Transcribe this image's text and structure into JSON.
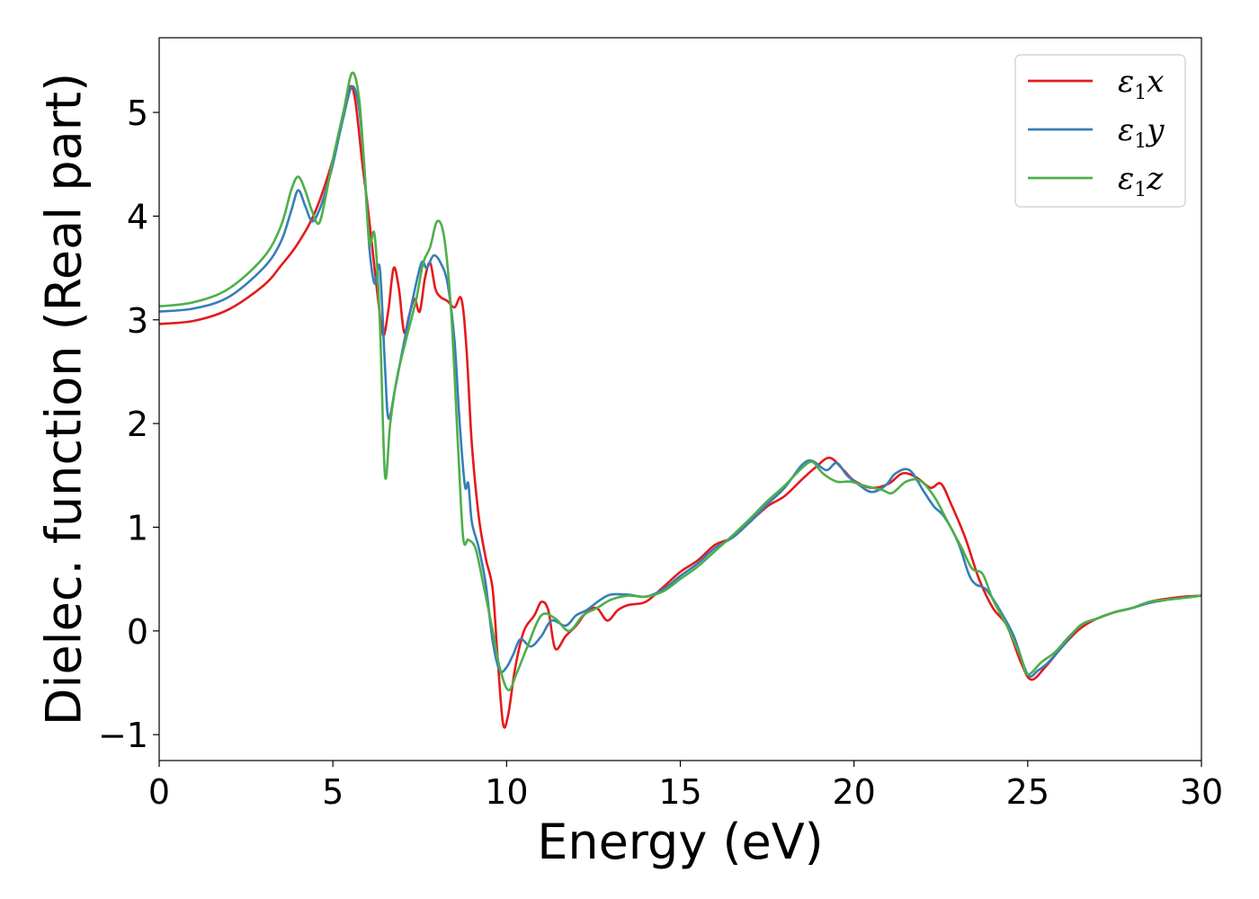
{
  "chart_data": {
    "type": "line",
    "title": "",
    "xlabel": "Energy (eV)",
    "ylabel": "Dielec. function (Real part)",
    "xlim": [
      0,
      30
    ],
    "ylim": [
      -1.25,
      5.72
    ],
    "xticks": [
      0,
      5,
      10,
      15,
      20,
      25,
      30
    ],
    "xtick_labels": [
      "0",
      "5",
      "10",
      "15",
      "20",
      "25",
      "30"
    ],
    "yticks": [
      -1,
      0,
      1,
      2,
      3,
      4,
      5
    ],
    "ytick_labels": [
      "−1",
      "0",
      "1",
      "2",
      "3",
      "4",
      "5"
    ],
    "grid": false,
    "legend_position": "top-right",
    "series": [
      {
        "name": "ε₁x",
        "legend_main": "ε",
        "legend_sub": "1",
        "legend_var": "x",
        "color": "#e41a1c",
        "points": [
          [
            0,
            2.96
          ],
          [
            1,
            2.99
          ],
          [
            2,
            3.1
          ],
          [
            3,
            3.33
          ],
          [
            3.5,
            3.52
          ],
          [
            4,
            3.74
          ],
          [
            4.5,
            4.05
          ],
          [
            5,
            4.55
          ],
          [
            5.3,
            5.0
          ],
          [
            5.5,
            5.25
          ],
          [
            5.65,
            5.1
          ],
          [
            5.85,
            4.5
          ],
          [
            6,
            4.1
          ],
          [
            6.15,
            3.65
          ],
          [
            6.3,
            3.2
          ],
          [
            6.45,
            2.85
          ],
          [
            6.6,
            3.1
          ],
          [
            6.75,
            3.5
          ],
          [
            6.9,
            3.3
          ],
          [
            7.05,
            2.88
          ],
          [
            7.2,
            3.05
          ],
          [
            7.35,
            3.2
          ],
          [
            7.5,
            3.08
          ],
          [
            7.65,
            3.4
          ],
          [
            7.8,
            3.55
          ],
          [
            7.95,
            3.3
          ],
          [
            8.1,
            3.22
          ],
          [
            8.3,
            3.18
          ],
          [
            8.5,
            3.12
          ],
          [
            8.7,
            3.2
          ],
          [
            8.85,
            2.7
          ],
          [
            9.0,
            1.8
          ],
          [
            9.2,
            1.1
          ],
          [
            9.4,
            0.7
          ],
          [
            9.6,
            0.4
          ],
          [
            9.75,
            -0.3
          ],
          [
            9.9,
            -0.9
          ],
          [
            10.05,
            -0.8
          ],
          [
            10.25,
            -0.35
          ],
          [
            10.5,
            0.0
          ],
          [
            10.8,
            0.15
          ],
          [
            11.0,
            0.28
          ],
          [
            11.2,
            0.2
          ],
          [
            11.4,
            -0.17
          ],
          [
            11.7,
            -0.05
          ],
          [
            12.0,
            0.05
          ],
          [
            12.3,
            0.18
          ],
          [
            12.6,
            0.22
          ],
          [
            12.9,
            0.1
          ],
          [
            13.2,
            0.2
          ],
          [
            13.5,
            0.25
          ],
          [
            14,
            0.28
          ],
          [
            14.5,
            0.42
          ],
          [
            15,
            0.57
          ],
          [
            15.5,
            0.68
          ],
          [
            16,
            0.83
          ],
          [
            16.5,
            0.9
          ],
          [
            17,
            1.05
          ],
          [
            17.5,
            1.2
          ],
          [
            18,
            1.3
          ],
          [
            18.5,
            1.46
          ],
          [
            18.9,
            1.58
          ],
          [
            19.3,
            1.67
          ],
          [
            19.7,
            1.55
          ],
          [
            20,
            1.45
          ],
          [
            20.5,
            1.38
          ],
          [
            21,
            1.42
          ],
          [
            21.4,
            1.52
          ],
          [
            21.8,
            1.48
          ],
          [
            22.2,
            1.38
          ],
          [
            22.5,
            1.42
          ],
          [
            22.8,
            1.22
          ],
          [
            23.2,
            0.9
          ],
          [
            23.6,
            0.5
          ],
          [
            24.0,
            0.22
          ],
          [
            24.4,
            0.05
          ],
          [
            24.8,
            -0.3
          ],
          [
            25.1,
            -0.47
          ],
          [
            25.5,
            -0.35
          ],
          [
            26,
            -0.15
          ],
          [
            26.5,
            0.02
          ],
          [
            27,
            0.12
          ],
          [
            27.5,
            0.18
          ],
          [
            28,
            0.22
          ],
          [
            28.5,
            0.28
          ],
          [
            29,
            0.31
          ],
          [
            29.5,
            0.33
          ],
          [
            30,
            0.34
          ]
        ]
      },
      {
        "name": "ε₁y",
        "legend_main": "ε",
        "legend_sub": "1",
        "legend_var": "y",
        "color": "#377eb8",
        "points": [
          [
            0,
            3.08
          ],
          [
            1,
            3.11
          ],
          [
            2,
            3.22
          ],
          [
            3,
            3.5
          ],
          [
            3.5,
            3.75
          ],
          [
            3.8,
            4.05
          ],
          [
            4.0,
            4.25
          ],
          [
            4.2,
            4.1
          ],
          [
            4.4,
            3.95
          ],
          [
            4.6,
            4.05
          ],
          [
            4.8,
            4.25
          ],
          [
            5,
            4.5
          ],
          [
            5.3,
            4.95
          ],
          [
            5.55,
            5.25
          ],
          [
            5.75,
            5.05
          ],
          [
            5.9,
            4.5
          ],
          [
            6.05,
            3.7
          ],
          [
            6.2,
            3.35
          ],
          [
            6.35,
            3.5
          ],
          [
            6.5,
            2.55
          ],
          [
            6.6,
            2.05
          ],
          [
            6.8,
            2.35
          ],
          [
            7.0,
            2.7
          ],
          [
            7.3,
            3.2
          ],
          [
            7.55,
            3.55
          ],
          [
            7.7,
            3.5
          ],
          [
            7.9,
            3.62
          ],
          [
            8.1,
            3.55
          ],
          [
            8.3,
            3.35
          ],
          [
            8.5,
            2.8
          ],
          [
            8.65,
            2.0
          ],
          [
            8.8,
            1.4
          ],
          [
            8.9,
            1.42
          ],
          [
            9.0,
            1.05
          ],
          [
            9.2,
            0.8
          ],
          [
            9.4,
            0.45
          ],
          [
            9.6,
            -0.1
          ],
          [
            9.8,
            -0.38
          ],
          [
            10.0,
            -0.35
          ],
          [
            10.2,
            -0.22
          ],
          [
            10.4,
            -0.08
          ],
          [
            10.7,
            -0.15
          ],
          [
            11.0,
            -0.05
          ],
          [
            11.3,
            0.1
          ],
          [
            11.7,
            0.05
          ],
          [
            12.0,
            0.15
          ],
          [
            12.3,
            0.2
          ],
          [
            12.7,
            0.3
          ],
          [
            13,
            0.35
          ],
          [
            13.5,
            0.35
          ],
          [
            14,
            0.33
          ],
          [
            14.5,
            0.4
          ],
          [
            15,
            0.53
          ],
          [
            15.5,
            0.65
          ],
          [
            16,
            0.8
          ],
          [
            16.5,
            0.9
          ],
          [
            17,
            1.05
          ],
          [
            17.5,
            1.22
          ],
          [
            18,
            1.38
          ],
          [
            18.5,
            1.6
          ],
          [
            18.8,
            1.64
          ],
          [
            19.2,
            1.55
          ],
          [
            19.5,
            1.62
          ],
          [
            19.8,
            1.5
          ],
          [
            20.1,
            1.42
          ],
          [
            20.5,
            1.34
          ],
          [
            20.9,
            1.4
          ],
          [
            21.2,
            1.52
          ],
          [
            21.6,
            1.55
          ],
          [
            22.0,
            1.35
          ],
          [
            22.3,
            1.2
          ],
          [
            22.6,
            1.1
          ],
          [
            23.0,
            0.85
          ],
          [
            23.3,
            0.55
          ],
          [
            23.5,
            0.45
          ],
          [
            23.8,
            0.4
          ],
          [
            24.2,
            0.2
          ],
          [
            24.6,
            -0.05
          ],
          [
            25.0,
            -0.42
          ],
          [
            25.3,
            -0.38
          ],
          [
            25.6,
            -0.3
          ],
          [
            26,
            -0.15
          ],
          [
            26.5,
            0.05
          ],
          [
            27,
            0.12
          ],
          [
            27.5,
            0.18
          ],
          [
            28,
            0.22
          ],
          [
            28.5,
            0.27
          ],
          [
            29,
            0.3
          ],
          [
            29.5,
            0.32
          ],
          [
            30,
            0.34
          ]
        ]
      },
      {
        "name": "ε₁z",
        "legend_main": "ε",
        "legend_sub": "1",
        "legend_var": "z",
        "color": "#4daf4a",
        "points": [
          [
            0,
            3.13
          ],
          [
            1,
            3.17
          ],
          [
            2,
            3.3
          ],
          [
            3,
            3.6
          ],
          [
            3.5,
            3.9
          ],
          [
            3.8,
            4.25
          ],
          [
            4.0,
            4.38
          ],
          [
            4.2,
            4.25
          ],
          [
            4.4,
            4.05
          ],
          [
            4.6,
            3.93
          ],
          [
            4.8,
            4.2
          ],
          [
            5,
            4.55
          ],
          [
            5.3,
            5.0
          ],
          [
            5.55,
            5.38
          ],
          [
            5.75,
            5.15
          ],
          [
            5.9,
            4.5
          ],
          [
            6.05,
            3.75
          ],
          [
            6.2,
            3.82
          ],
          [
            6.35,
            3.0
          ],
          [
            6.5,
            1.5
          ],
          [
            6.65,
            2.0
          ],
          [
            6.85,
            2.45
          ],
          [
            7.1,
            2.8
          ],
          [
            7.4,
            3.2
          ],
          [
            7.6,
            3.55
          ],
          [
            7.8,
            3.7
          ],
          [
            8.0,
            3.95
          ],
          [
            8.2,
            3.8
          ],
          [
            8.4,
            3.1
          ],
          [
            8.6,
            1.8
          ],
          [
            8.75,
            0.9
          ],
          [
            8.9,
            0.88
          ],
          [
            9.1,
            0.8
          ],
          [
            9.3,
            0.5
          ],
          [
            9.6,
            0.0
          ],
          [
            9.8,
            -0.35
          ],
          [
            10.05,
            -0.57
          ],
          [
            10.3,
            -0.4
          ],
          [
            10.6,
            -0.15
          ],
          [
            11.0,
            0.15
          ],
          [
            11.4,
            0.12
          ],
          [
            11.8,
            0.0
          ],
          [
            12.2,
            0.15
          ],
          [
            12.6,
            0.22
          ],
          [
            13,
            0.3
          ],
          [
            13.5,
            0.34
          ],
          [
            14,
            0.33
          ],
          [
            14.5,
            0.38
          ],
          [
            15,
            0.5
          ],
          [
            15.5,
            0.62
          ],
          [
            16,
            0.77
          ],
          [
            16.5,
            0.92
          ],
          [
            17,
            1.08
          ],
          [
            17.5,
            1.25
          ],
          [
            18,
            1.4
          ],
          [
            18.5,
            1.57
          ],
          [
            18.8,
            1.63
          ],
          [
            19.1,
            1.52
          ],
          [
            19.5,
            1.44
          ],
          [
            19.9,
            1.44
          ],
          [
            20.3,
            1.4
          ],
          [
            20.8,
            1.36
          ],
          [
            21.1,
            1.33
          ],
          [
            21.5,
            1.44
          ],
          [
            21.9,
            1.45
          ],
          [
            22.3,
            1.3
          ],
          [
            22.7,
            1.05
          ],
          [
            23.1,
            0.8
          ],
          [
            23.4,
            0.6
          ],
          [
            23.7,
            0.55
          ],
          [
            24.0,
            0.3
          ],
          [
            24.4,
            0.05
          ],
          [
            24.8,
            -0.25
          ],
          [
            25.0,
            -0.42
          ],
          [
            25.4,
            -0.3
          ],
          [
            25.8,
            -0.2
          ],
          [
            26.2,
            -0.05
          ],
          [
            26.6,
            0.07
          ],
          [
            27,
            0.12
          ],
          [
            27.5,
            0.18
          ],
          [
            28,
            0.22
          ],
          [
            28.5,
            0.28
          ],
          [
            29,
            0.3
          ],
          [
            29.5,
            0.32
          ],
          [
            30,
            0.34
          ]
        ]
      }
    ]
  }
}
